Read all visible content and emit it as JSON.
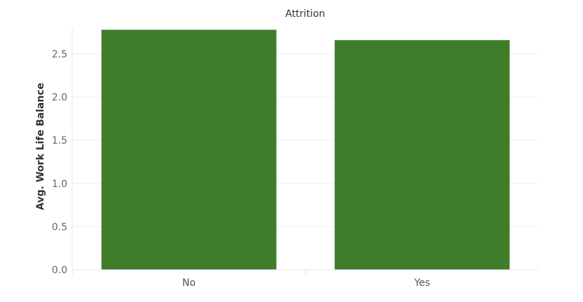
{
  "chart_data": {
    "type": "bar",
    "title": "Attrition",
    "xlabel": "",
    "ylabel": "Avg. Work Life Balance",
    "categories": [
      "No",
      "Yes"
    ],
    "values": [
      2.78,
      2.66
    ],
    "ylim": [
      0,
      2.8
    ],
    "yticks": [
      0.0,
      0.5,
      1.0,
      1.5,
      2.0,
      2.5
    ],
    "ytick_labels": [
      "0.0",
      "0.5",
      "1.0",
      "1.5",
      "2.0",
      "2.5"
    ],
    "bar_color": "#3f7d2b",
    "grid": true,
    "legend": "none"
  }
}
